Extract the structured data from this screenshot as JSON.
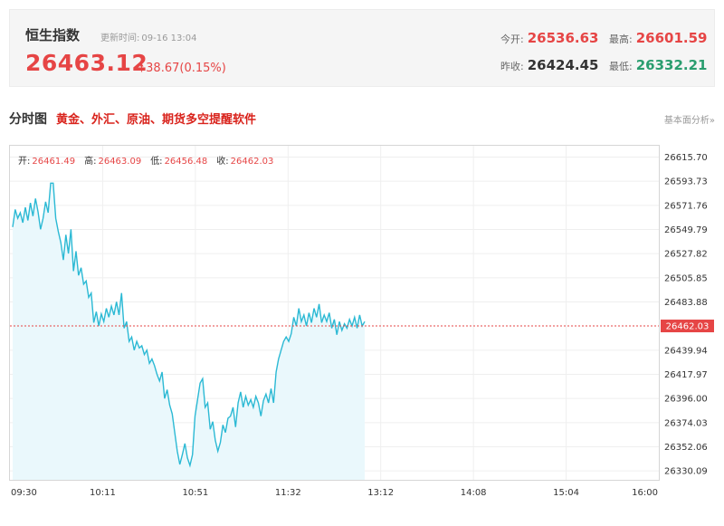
{
  "header": {
    "name": "恒生指数",
    "update_label": "更新时间:",
    "update_time": "09-16 13:04",
    "price": "26463.12",
    "change": "38.67(0.15%)",
    "open_label": "今开:",
    "open": "26536.63",
    "high_label": "最高:",
    "high": "26601.59",
    "prev_close_label": "昨收:",
    "prev_close": "26424.45",
    "low_label": "最低:",
    "low": "26332.21"
  },
  "title_bar": {
    "main": "分时图",
    "promo": "黄金、外汇、原油、期货多空提醒软件",
    "right_link": "基本面分析»"
  },
  "colors": {
    "up": "#e64545",
    "down": "#2a9d6f",
    "line": "#2bb9d4",
    "fill": "#eaf8fc",
    "ref_line": "#e64545"
  },
  "chart_data": {
    "type": "line",
    "ohlc": {
      "open_label": "开:",
      "open": "26461.49",
      "high_label": "高:",
      "high": "26463.09",
      "low_label": "低:",
      "low": "26456.48",
      "close_label": "收:",
      "close": "26462.03"
    },
    "y_ticks": [
      "26615.70",
      "26593.73",
      "26571.76",
      "26549.79",
      "26527.82",
      "26505.85",
      "26483.88",
      "26439.94",
      "26417.97",
      "26396.00",
      "26374.03",
      "26352.06",
      "26330.09"
    ],
    "current_label": "26462.03",
    "x_ticks": [
      "09:30",
      "10:11",
      "10:51",
      "11:32",
      "13:12",
      "14:08",
      "15:04",
      "16:00"
    ],
    "ylim": [
      26322,
      26626
    ],
    "series": [
      {
        "values": [
          26552,
          26568,
          26560,
          26565,
          26556,
          26570,
          26558,
          26574,
          26562,
          26578,
          26566,
          26550,
          26560,
          26575,
          26565,
          26592,
          26592,
          26560,
          26548,
          26538,
          26522,
          26545,
          26528,
          26550,
          26512,
          26530,
          26508,
          26515,
          26500,
          26503,
          26488,
          26492,
          26465,
          26475,
          26462,
          26473,
          26466,
          26478,
          26470,
          26480,
          26472,
          26484,
          26472,
          26492,
          26460,
          26466,
          26448,
          26452,
          26440,
          26448,
          26442,
          26444,
          26436,
          26440,
          26428,
          26432,
          26426,
          26418,
          26412,
          26420,
          26396,
          26404,
          26390,
          26382,
          26365,
          26348,
          26336,
          26345,
          26355,
          26342,
          26335,
          26345,
          26380,
          26395,
          26410,
          26414,
          26388,
          26392,
          26368,
          26375,
          26358,
          26348,
          26356,
          26372,
          26365,
          26378,
          26380,
          26388,
          26370,
          26392,
          26402,
          26388,
          26398,
          26390,
          26395,
          26388,
          26398,
          26392,
          26380,
          26394,
          26400,
          26392,
          26405,
          26392,
          26420,
          26432,
          26440,
          26448,
          26452,
          26448,
          26455,
          26470,
          26462,
          26478,
          26466,
          26472,
          26462,
          26474,
          26465,
          26478,
          26470,
          26482,
          26465,
          26472,
          26466,
          26474,
          26460,
          26468,
          26454,
          26466,
          26458,
          26464,
          26460,
          26468,
          26462,
          26470,
          26460,
          26472,
          26462,
          26466
        ]
      }
    ]
  }
}
